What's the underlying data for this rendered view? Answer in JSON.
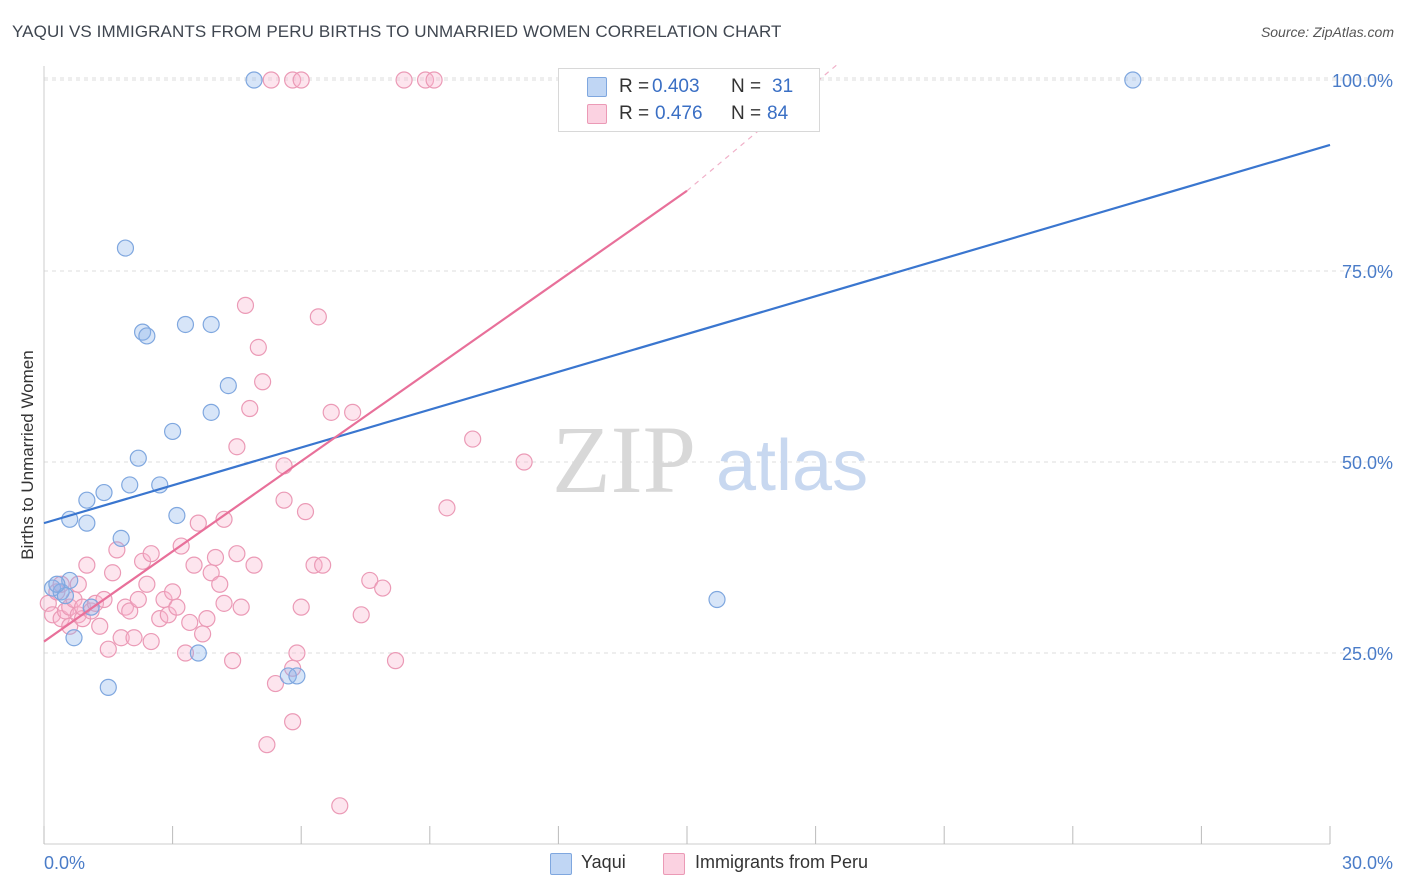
{
  "title": "YAQUI VS IMMIGRANTS FROM PERU BIRTHS TO UNMARRIED WOMEN CORRELATION CHART",
  "source": "Source: ZipAtlas.com",
  "watermark": {
    "part1": "ZIP",
    "part2": "atlas"
  },
  "legend": {
    "series1": {
      "r_label": "R =",
      "r_value": "0.403",
      "n_label": "N =",
      "n_value": "31"
    },
    "series2": {
      "r_label": "R =",
      "r_value": "0.476",
      "n_label": "N =",
      "n_value": "84"
    }
  },
  "bottom_legend": {
    "series1": "Yaqui",
    "series2": "Immigrants from Peru"
  },
  "colors": {
    "blue": "#4a7fd0",
    "blue_fill": "rgba(120,165,230,0.35)",
    "pink": "#e8709a",
    "pink_fill": "rgba(245,160,190,0.35)"
  },
  "chart_data": {
    "type": "scatter",
    "title": "YAQUI VS IMMIGRANTS FROM PERU BIRTHS TO UNMARRIED WOMEN CORRELATION CHART",
    "xlabel": "",
    "ylabel": "Births to Unmarried Women",
    "xlim": [
      0,
      30
    ],
    "ylim": [
      0,
      102
    ],
    "x_tick_labels": [
      "0.0%",
      "30.0%"
    ],
    "y_tick_labels": [
      "25.0%",
      "50.0%",
      "75.0%",
      "100.0%"
    ],
    "y_ticks": [
      25,
      50,
      75,
      100
    ],
    "series": [
      {
        "name": "Yaqui",
        "r": 0.403,
        "n": 31,
        "trend": {
          "x0": 0,
          "y0": 42.0,
          "x1": 30,
          "y1": 91.5
        },
        "points": [
          [
            0.2,
            33.5
          ],
          [
            0.4,
            33.0
          ],
          [
            0.5,
            32.5
          ],
          [
            0.6,
            34.5
          ],
          [
            0.7,
            27.0
          ],
          [
            0.6,
            42.5
          ],
          [
            1.0,
            42.0
          ],
          [
            1.0,
            45.0
          ],
          [
            1.1,
            31.0
          ],
          [
            1.4,
            46.0
          ],
          [
            1.5,
            20.5
          ],
          [
            1.8,
            40.0
          ],
          [
            1.9,
            78.0
          ],
          [
            2.0,
            47.0
          ],
          [
            2.2,
            50.5
          ],
          [
            2.3,
            67.0
          ],
          [
            2.4,
            66.5
          ],
          [
            2.7,
            47.0
          ],
          [
            3.0,
            54.0
          ],
          [
            3.1,
            43.0
          ],
          [
            3.3,
            68.0
          ],
          [
            3.6,
            25.0
          ],
          [
            3.9,
            56.5
          ],
          [
            3.9,
            68.0
          ],
          [
            4.3,
            60.0
          ],
          [
            4.9,
            100.0
          ],
          [
            5.7,
            22.0
          ],
          [
            5.9,
            22.0
          ],
          [
            15.7,
            32.0
          ],
          [
            25.4,
            100.0
          ],
          [
            0.3,
            34.0
          ]
        ]
      },
      {
        "name": "Immigrants from Peru",
        "r": 0.476,
        "n": 84,
        "trend": {
          "x0": 0,
          "y0": 26.5,
          "x1": 15,
          "y1": 85.5,
          "dash_x1": 18.5,
          "dash_y1": 102.0
        },
        "points": [
          [
            0.1,
            31.5
          ],
          [
            0.2,
            30.0
          ],
          [
            0.3,
            33.0
          ],
          [
            0.4,
            34.0
          ],
          [
            0.4,
            29.5
          ],
          [
            0.5,
            30.5
          ],
          [
            0.6,
            28.5
          ],
          [
            0.6,
            31.0
          ],
          [
            0.7,
            32.0
          ],
          [
            0.8,
            30.0
          ],
          [
            0.9,
            29.5
          ],
          [
            0.9,
            31.0
          ],
          [
            1.0,
            36.5
          ],
          [
            1.1,
            30.5
          ],
          [
            1.2,
            31.5
          ],
          [
            1.3,
            28.5
          ],
          [
            1.4,
            32.0
          ],
          [
            1.5,
            25.5
          ],
          [
            1.6,
            35.5
          ],
          [
            1.7,
            38.5
          ],
          [
            1.8,
            27.0
          ],
          [
            1.9,
            31.0
          ],
          [
            2.0,
            30.5
          ],
          [
            2.1,
            27.0
          ],
          [
            2.2,
            32.0
          ],
          [
            2.3,
            37.0
          ],
          [
            2.4,
            34.0
          ],
          [
            2.5,
            38.0
          ],
          [
            2.5,
            26.5
          ],
          [
            2.7,
            29.5
          ],
          [
            2.8,
            32.0
          ],
          [
            2.9,
            30.0
          ],
          [
            3.0,
            33.0
          ],
          [
            3.1,
            31.0
          ],
          [
            3.2,
            39.0
          ],
          [
            3.3,
            25.0
          ],
          [
            3.4,
            29.0
          ],
          [
            3.5,
            36.5
          ],
          [
            3.6,
            42.0
          ],
          [
            3.7,
            27.5
          ],
          [
            3.8,
            29.5
          ],
          [
            3.9,
            35.5
          ],
          [
            4.0,
            37.5
          ],
          [
            4.1,
            34.0
          ],
          [
            4.2,
            31.5
          ],
          [
            4.2,
            42.5
          ],
          [
            4.4,
            24.0
          ],
          [
            4.5,
            38.0
          ],
          [
            4.5,
            52.0
          ],
          [
            4.6,
            31.0
          ],
          [
            4.7,
            70.5
          ],
          [
            4.8,
            57.0
          ],
          [
            4.9,
            36.5
          ],
          [
            5.0,
            65.0
          ],
          [
            5.1,
            60.5
          ],
          [
            5.2,
            13.0
          ],
          [
            5.4,
            21.0
          ],
          [
            5.6,
            49.5
          ],
          [
            5.6,
            45.0
          ],
          [
            5.8,
            23.0
          ],
          [
            5.8,
            16.0
          ],
          [
            5.9,
            25.0
          ],
          [
            6.0,
            31.0
          ],
          [
            6.1,
            43.5
          ],
          [
            6.3,
            36.5
          ],
          [
            6.4,
            69.0
          ],
          [
            6.5,
            36.5
          ],
          [
            6.7,
            56.5
          ],
          [
            6.9,
            5.0
          ],
          [
            7.2,
            56.5
          ],
          [
            7.4,
            30.0
          ],
          [
            7.6,
            34.5
          ],
          [
            7.9,
            33.5
          ],
          [
            8.2,
            24.0
          ],
          [
            8.4,
            100.0
          ],
          [
            8.9,
            100.0
          ],
          [
            9.1,
            100.0
          ],
          [
            5.3,
            100.0
          ],
          [
            5.8,
            100.0
          ],
          [
            9.4,
            44.0
          ],
          [
            10.0,
            53.0
          ],
          [
            11.2,
            50.0
          ],
          [
            6.0,
            100.0
          ],
          [
            0.8,
            34.0
          ]
        ]
      }
    ]
  }
}
